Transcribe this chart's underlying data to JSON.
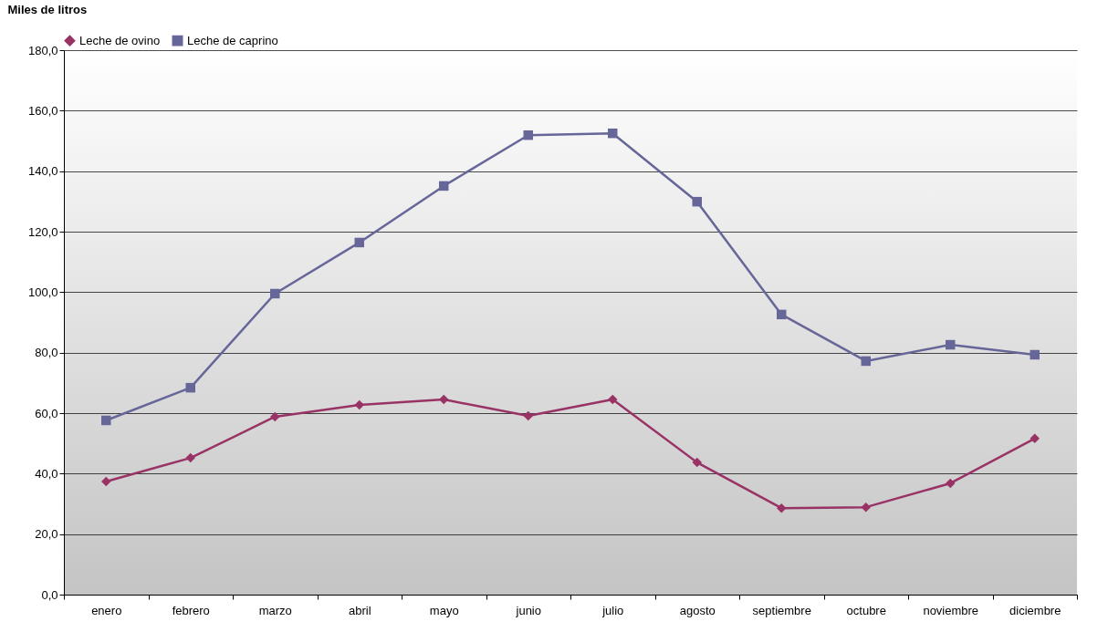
{
  "chart_data": {
    "type": "line",
    "ylabel": "Miles de litros",
    "categories": [
      "enero",
      "febrero",
      "marzo",
      "abril",
      "mayo",
      "junio",
      "julio",
      "agosto",
      "septiembre",
      "octubre",
      "noviembre",
      "diciembre"
    ],
    "series": [
      {
        "name": "Leche de ovino",
        "color": "#993366",
        "marker": "diamond",
        "values": [
          37.4,
          45.2,
          58.8,
          62.7,
          64.5,
          59.1,
          64.5,
          43.7,
          28.6,
          28.9,
          36.8,
          51.6
        ]
      },
      {
        "name": "Leche de caprino",
        "color": "#666699",
        "marker": "square",
        "values": [
          57.6,
          68.4,
          99.5,
          116.4,
          135.1,
          151.9,
          152.5,
          129.9,
          92.6,
          77.2,
          82.6,
          79.3
        ]
      }
    ],
    "ylim": [
      0,
      180
    ],
    "yticks": [
      {
        "value": 0,
        "label": "0,0"
      },
      {
        "value": 20,
        "label": "20,0"
      },
      {
        "value": 40,
        "label": "40,0"
      },
      {
        "value": 60,
        "label": "60,0"
      },
      {
        "value": 80,
        "label": "80,0"
      },
      {
        "value": 100,
        "label": "100,0"
      },
      {
        "value": 120,
        "label": "120,0"
      },
      {
        "value": 140,
        "label": "140,0"
      },
      {
        "value": 160,
        "label": "160,0"
      },
      {
        "value": 180,
        "label": "180,0"
      }
    ],
    "grid": "y",
    "legend": "top",
    "line_style": "solid"
  }
}
